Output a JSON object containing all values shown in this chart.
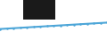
{
  "x": [
    2000,
    2001,
    2002,
    2003,
    2004,
    2005,
    2006,
    2007,
    2008,
    2009,
    2010,
    2011,
    2012,
    2013,
    2014,
    2015,
    2016
  ],
  "y": [
    55,
    57,
    59,
    61,
    63,
    65,
    67,
    69,
    71,
    73,
    75,
    77,
    79,
    81,
    83,
    85,
    87
  ],
  "line_color": "#4da6d8",
  "background_color": "#ffffff",
  "header_color": "#1a1a1a",
  "ylim": [
    0,
    200
  ],
  "xlim": [
    2000,
    2016
  ],
  "line_width": 1.5,
  "marker": "o",
  "marker_size": 1.8
}
